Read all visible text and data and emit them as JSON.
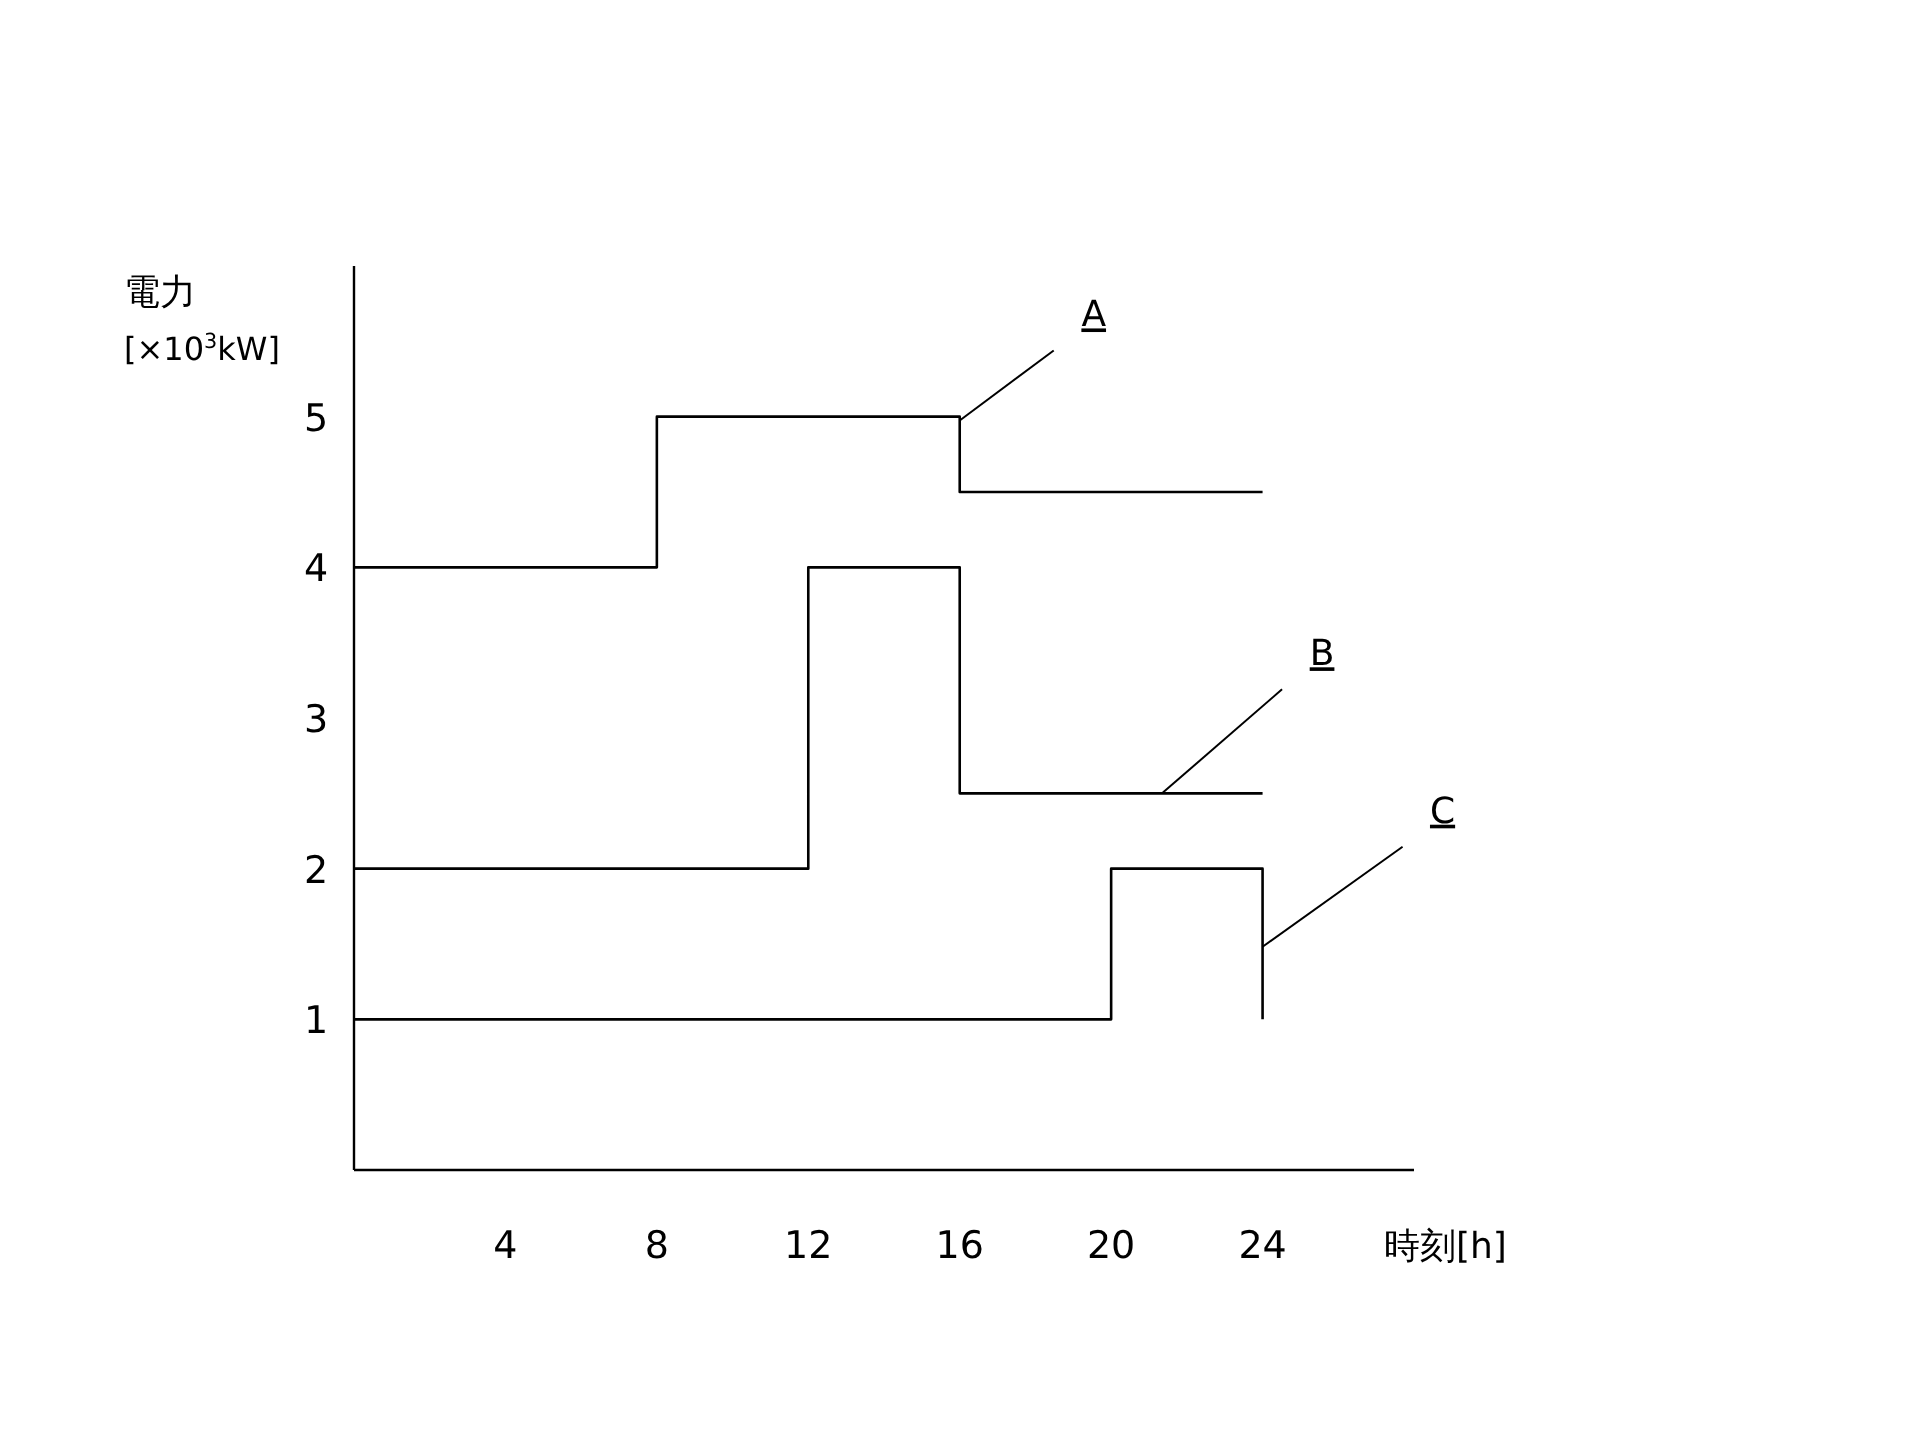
{
  "chart_data": {
    "type": "step",
    "ylabel": "電力",
    "y2label": "[×10$^{3}$kW]",
    "xlabel": "時刻[h]",
    "xlim": [
      0,
      28
    ],
    "ylim": [
      0,
      6
    ],
    "xticks": [
      4,
      8,
      12,
      16,
      20,
      24
    ],
    "yticks": [
      1,
      2,
      3,
      4,
      5
    ],
    "grid": false,
    "marker": "none",
    "line_style": "solid",
    "series": [
      {
        "name": "A",
        "color": "#000000",
        "x": [
          0,
          8,
          16,
          24
        ],
        "values": [
          4,
          5,
          4.5,
          4.5
        ]
      },
      {
        "name": "B",
        "color": "#000000",
        "x": [
          0,
          12,
          16,
          24
        ],
        "values": [
          2,
          4,
          2.5,
          2.5
        ]
      },
      {
        "name": "C",
        "color": "#000000",
        "x": [
          0,
          20,
          24
        ],
        "values": [
          1,
          2,
          1
        ]
      }
    ]
  }
}
